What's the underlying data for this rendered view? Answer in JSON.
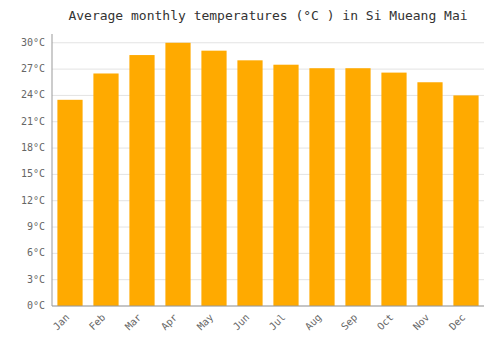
{
  "chart_data": {
    "type": "bar",
    "title": "Average monthly temperatures (°C ) in Si Mueang Mai",
    "categories": [
      "Jan",
      "Feb",
      "Mar",
      "Apr",
      "May",
      "Jun",
      "Jul",
      "Aug",
      "Sep",
      "Oct",
      "Nov",
      "Dec"
    ],
    "values": [
      23.5,
      26.5,
      28.6,
      30.0,
      29.1,
      28.0,
      27.5,
      27.1,
      27.1,
      26.6,
      25.5,
      24.0
    ],
    "color": "#FFAA00",
    "ylim": [
      0,
      31
    ],
    "yticks": [
      {
        "value": 0,
        "label": "0°C"
      },
      {
        "value": 3,
        "label": "3°C"
      },
      {
        "value": 6,
        "label": "6°C"
      },
      {
        "value": 9,
        "label": "9°C"
      },
      {
        "value": 12,
        "label": "12°C"
      },
      {
        "value": 15,
        "label": "15°C"
      },
      {
        "value": 18,
        "label": "18°C"
      },
      {
        "value": 21,
        "label": "21°C"
      },
      {
        "value": 24,
        "label": "24°C"
      },
      {
        "value": 27,
        "label": "27°C"
      },
      {
        "value": 30,
        "label": "30°C"
      }
    ],
    "grid": true
  }
}
